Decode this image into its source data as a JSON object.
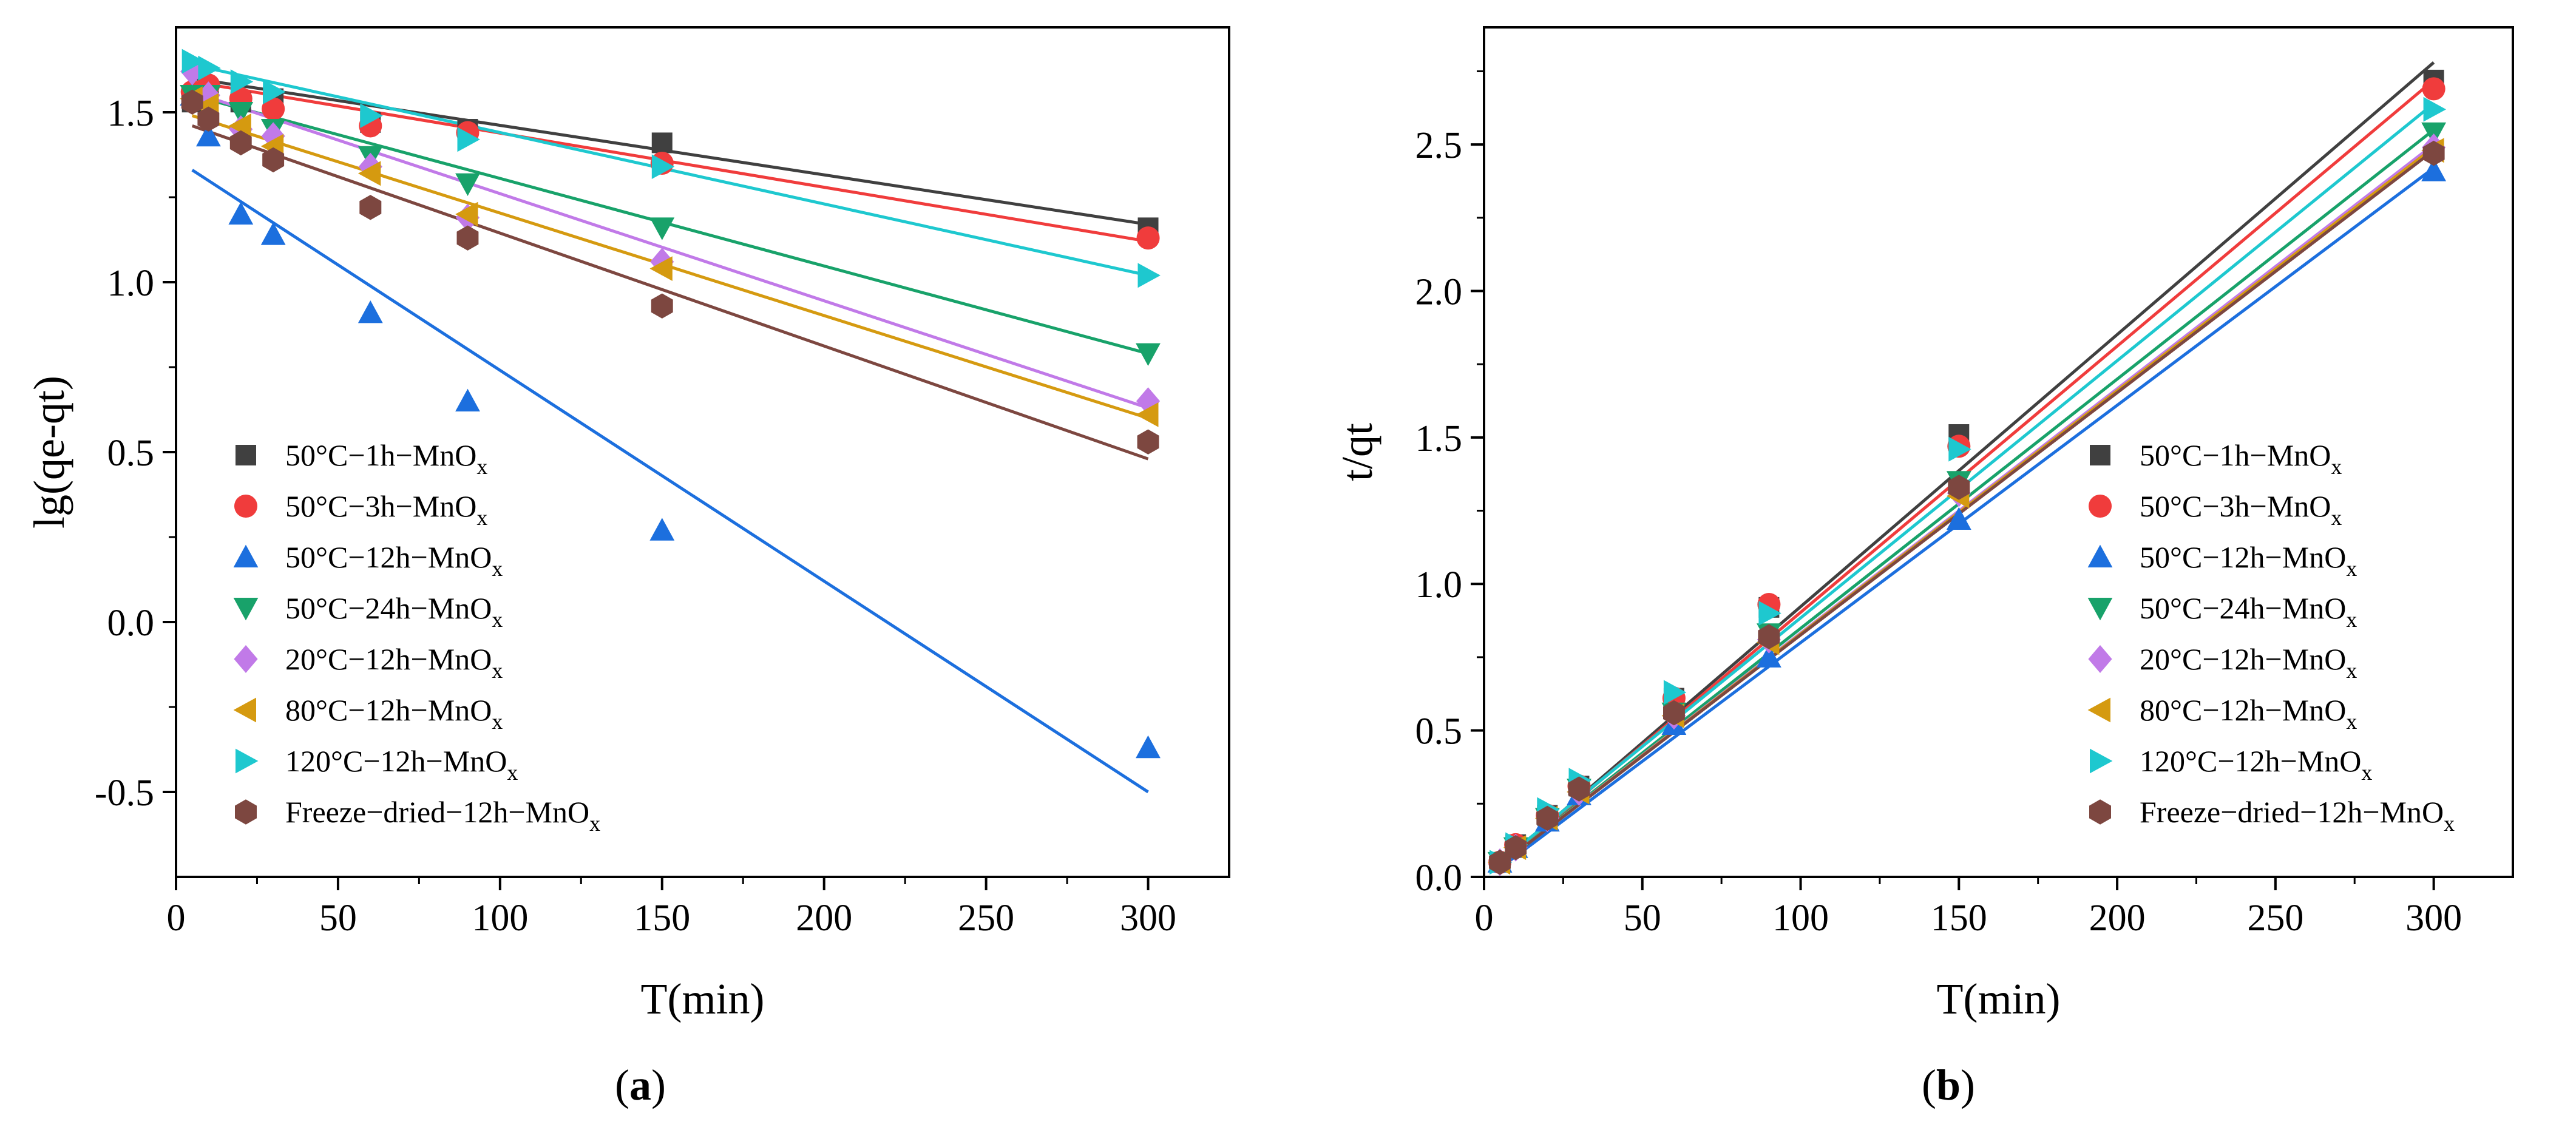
{
  "figure": {
    "panels": [
      {
        "label_open": "(",
        "label_letter": "a",
        "label_close": ")"
      },
      {
        "label_open": "(",
        "label_letter": "b",
        "label_close": ")"
      }
    ]
  },
  "chart_data": [
    {
      "type": "scatter",
      "panel": "a",
      "xlabel": "T(min)",
      "ylabel": "lg(qe-qt)",
      "xlim": [
        0,
        325
      ],
      "ylim": [
        -0.75,
        1.75
      ],
      "xticks": [
        0,
        50,
        100,
        150,
        200,
        250,
        300
      ],
      "yticks": [
        -0.5,
        0.0,
        0.5,
        1.0,
        1.5
      ],
      "xtick_labels": [
        "0",
        "50",
        "100",
        "150",
        "200",
        "250",
        "300"
      ],
      "ytick_labels": [
        "-0.5",
        "0.0",
        "0.5",
        "1.0",
        "1.5"
      ],
      "grid": false,
      "legend_position": "bottom-left",
      "x": [
        5,
        10,
        20,
        30,
        60,
        90,
        150,
        300
      ],
      "series": [
        {
          "name": "50°C−1h−MnO",
          "sub": "x",
          "color": "#404040",
          "marker": "square",
          "values": [
            1.53,
            1.56,
            1.53,
            1.54,
            1.47,
            1.45,
            1.41,
            1.16
          ],
          "fit": [
            1.6,
            1.17
          ]
        },
        {
          "name": "50°C−3h−MnO",
          "sub": "x",
          "color": "#f03c3c",
          "marker": "circle",
          "values": [
            1.56,
            1.58,
            1.54,
            1.51,
            1.46,
            1.44,
            1.35,
            1.13
          ],
          "fit": [
            1.59,
            1.12
          ]
        },
        {
          "name": "50°C−12h−MnO",
          "sub": "x",
          "color": "#1c6fde",
          "marker": "triangle-up",
          "values": [
            1.55,
            1.43,
            1.2,
            1.14,
            0.91,
            0.65,
            0.27,
            -0.37
          ],
          "fit": [
            1.33,
            -0.5
          ]
        },
        {
          "name": "50°C−24h−MnO",
          "sub": "x",
          "color": "#18a26a",
          "marker": "triangle-down",
          "values": [
            1.55,
            1.55,
            1.5,
            1.45,
            1.37,
            1.29,
            1.16,
            0.79
          ],
          "fit": [
            1.55,
            0.79
          ]
        },
        {
          "name": "20°C−12h−MnO",
          "sub": "x",
          "color": "#c17ae8",
          "marker": "diamond",
          "values": [
            1.62,
            1.55,
            1.45,
            1.43,
            1.34,
            1.19,
            1.06,
            0.65
          ],
          "fit": [
            1.56,
            0.63
          ]
        },
        {
          "name": "80°C−12h−MnO",
          "sub": "x",
          "color": "#d59a10",
          "marker": "triangle-left",
          "values": [
            1.54,
            1.52,
            1.46,
            1.4,
            1.32,
            1.2,
            1.04,
            0.61
          ],
          "fit": [
            1.49,
            0.6
          ]
        },
        {
          "name": "120°C−12h−MnO",
          "sub": "x",
          "color": "#1ec8cf",
          "marker": "triangle-right",
          "values": [
            1.65,
            1.63,
            1.59,
            1.56,
            1.49,
            1.42,
            1.34,
            1.02
          ],
          "fit": [
            1.64,
            1.02
          ]
        },
        {
          "name": "Freeze−dried−12h−MnO",
          "sub": "x",
          "color": "#7d4740",
          "marker": "hexagon",
          "values": [
            1.53,
            1.48,
            1.41,
            1.36,
            1.22,
            1.13,
            0.93,
            0.53
          ],
          "fit": [
            1.46,
            0.48
          ]
        }
      ]
    },
    {
      "type": "scatter",
      "panel": "b",
      "xlabel": "T(min)",
      "ylabel": "t/qt",
      "xlim": [
        0,
        325
      ],
      "ylim": [
        0.0,
        2.9
      ],
      "xticks": [
        0,
        50,
        100,
        150,
        200,
        250,
        300
      ],
      "yticks": [
        0.0,
        0.5,
        1.0,
        1.5,
        2.0,
        2.5
      ],
      "xtick_labels": [
        "0",
        "50",
        "100",
        "150",
        "200",
        "250",
        "300"
      ],
      "ytick_labels": [
        "0.0",
        "0.5",
        "1.0",
        "1.5",
        "2.0",
        "2.5"
      ],
      "grid": false,
      "legend_position": "bottom-right",
      "x": [
        5,
        10,
        20,
        30,
        60,
        90,
        150,
        300
      ],
      "series": [
        {
          "name": "50°C−1h−MnO",
          "sub": "x",
          "color": "#404040",
          "marker": "square",
          "values": [
            0.05,
            0.11,
            0.21,
            0.31,
            0.61,
            0.92,
            1.51,
            2.72
          ],
          "fit": [
            0.04,
            2.78
          ]
        },
        {
          "name": "50°C−3h−MnO",
          "sub": "x",
          "color": "#f03c3c",
          "marker": "circle",
          "values": [
            0.05,
            0.11,
            0.21,
            0.31,
            0.61,
            0.93,
            1.47,
            2.69
          ],
          "fit": [
            0.04,
            2.72
          ]
        },
        {
          "name": "50°C−12h−MnO",
          "sub": "x",
          "color": "#1c6fde",
          "marker": "triangle-up",
          "values": [
            0.05,
            0.1,
            0.19,
            0.28,
            0.52,
            0.75,
            1.22,
            2.41
          ],
          "fit": [
            0.03,
            2.42
          ]
        },
        {
          "name": "50°C−24h−MnO",
          "sub": "x",
          "color": "#18a26a",
          "marker": "triangle-down",
          "values": [
            0.05,
            0.1,
            0.2,
            0.3,
            0.56,
            0.83,
            1.35,
            2.54
          ],
          "fit": [
            0.04,
            2.55
          ]
        },
        {
          "name": "20°C−12h−MnO",
          "sub": "x",
          "color": "#c17ae8",
          "marker": "diamond",
          "values": [
            0.05,
            0.1,
            0.2,
            0.29,
            0.55,
            0.81,
            1.31,
            2.49
          ],
          "fit": [
            0.04,
            2.5
          ]
        },
        {
          "name": "80°C−12h−MnO",
          "sub": "x",
          "color": "#d59a10",
          "marker": "triangle-left",
          "values": [
            0.05,
            0.1,
            0.2,
            0.29,
            0.55,
            0.8,
            1.3,
            2.48
          ],
          "fit": [
            0.04,
            2.49
          ]
        },
        {
          "name": "120°C−12h−MnO",
          "sub": "x",
          "color": "#1ec8cf",
          "marker": "triangle-right",
          "values": [
            0.05,
            0.11,
            0.23,
            0.33,
            0.63,
            0.9,
            1.46,
            2.62
          ],
          "fit": [
            0.05,
            2.64
          ]
        },
        {
          "name": "Freeze−dried−12h−MnO",
          "sub": "x",
          "color": "#7d4740",
          "marker": "hexagon",
          "values": [
            0.05,
            0.1,
            0.2,
            0.3,
            0.56,
            0.82,
            1.33,
            2.47
          ],
          "fit": [
            0.04,
            2.48
          ]
        }
      ]
    }
  ]
}
